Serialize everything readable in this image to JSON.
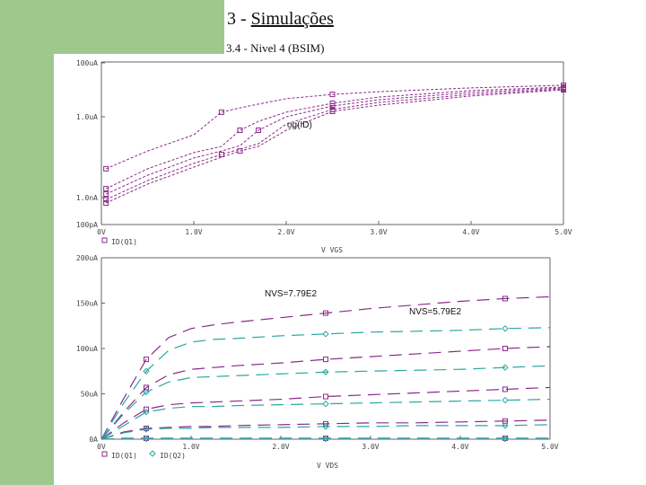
{
  "header": {
    "number": "3 -",
    "title": "Simulações",
    "subtitle": "3.4 - Nivel 4  (BSIM)"
  },
  "colors": {
    "q1": "#8b2a8b",
    "q2": "#2aa8a0",
    "axis": "#666666",
    "band": "#9dc98f"
  },
  "chart_data": [
    {
      "type": "line",
      "title": "",
      "xlabel": "V VGS",
      "ylabel": "",
      "yscale": "log",
      "legend": [
        "ID(Q1)"
      ],
      "annotation": "og(ID)",
      "xlim": [
        0,
        5
      ],
      "ylim_log10": [
        -10,
        -4
      ],
      "xticks": [
        "0V",
        "1.0V",
        "2.0V",
        "3.0V",
        "4.0V",
        "5.0V"
      ],
      "yticks": [
        {
          "label": "100uA",
          "log10": -4
        },
        {
          "label": "1.0uA",
          "log10": -6
        },
        {
          "label": "1.0nA",
          "log10": -9
        },
        {
          "label": "100pA",
          "log10": -10
        }
      ],
      "x": [
        0.05,
        0.5,
        1.0,
        1.3,
        1.5,
        1.7,
        2,
        2.5,
        3,
        4,
        5
      ],
      "series": [
        {
          "name": "ID(Q1)",
          "log10_values": [
            -7.93,
            -7.27,
            -6.67,
            -5.83,
            -5.67,
            -5.53,
            -5.33,
            -5.17,
            -5.07,
            -4.93,
            -4.83
          ]
        },
        {
          "name": "ID(Q1)",
          "log10_values": [
            -8.67,
            -7.93,
            -7.33,
            -7.1,
            -6.5,
            -6.17,
            -5.83,
            -5.5,
            -5.27,
            -5.03,
            -4.9
          ]
        },
        {
          "name": "ID(Q1)",
          "log10_values": [
            -8.87,
            -8.17,
            -7.53,
            -7.27,
            -7.07,
            -6.5,
            -6.0,
            -5.6,
            -5.37,
            -5.1,
            -4.93
          ]
        },
        {
          "name": "ID(Q1)",
          "log10_values": [
            -9.07,
            -8.37,
            -7.73,
            -7.4,
            -7.2,
            -7.0,
            -6.27,
            -5.73,
            -5.47,
            -5.17,
            -4.97
          ]
        },
        {
          "name": "ID(Q1)",
          "log10_values": [
            -9.2,
            -8.5,
            -7.87,
            -7.5,
            -7.27,
            -7.1,
            -6.5,
            -5.8,
            -5.57,
            -5.23,
            -5.0
          ]
        }
      ]
    },
    {
      "type": "line",
      "title": "",
      "xlabel": "V VDS",
      "ylabel": "",
      "legend": [
        "ID(Q1)",
        "ID(Q2)"
      ],
      "annotations": [
        "NVS=7.79E2",
        "NVS=5.79E2"
      ],
      "xlim": [
        0,
        5
      ],
      "ylim": [
        0,
        200
      ],
      "xticks": [
        "0V",
        "1.0V",
        "2.0V",
        "3.0V",
        "4.0V",
        "5.0V"
      ],
      "yticks": [
        {
          "label": "200uA",
          "v": 200
        },
        {
          "label": "150uA",
          "v": 150
        },
        {
          "label": "100uA",
          "v": 100
        },
        {
          "label": "50uA",
          "v": 50
        },
        {
          "label": "0A",
          "v": 0
        }
      ],
      "x": [
        0,
        0.25,
        0.5,
        0.75,
        1,
        1.25,
        1.5,
        2,
        2.5,
        3,
        3.5,
        4,
        4.5,
        5
      ],
      "series": [
        {
          "name": "ID(Q1)",
          "values": [
            0,
            45,
            88,
            112,
            122,
            126,
            129,
            134,
            139,
            144,
            148,
            152,
            155,
            157
          ]
        },
        {
          "name": "ID(Q2)",
          "values": [
            0,
            40,
            75,
            98,
            107,
            110,
            111,
            114,
            116,
            118,
            119,
            120,
            122,
            123
          ]
        },
        {
          "name": "ID(Q1)",
          "values": [
            0,
            30,
            57,
            71,
            77,
            79,
            81,
            84,
            88,
            91,
            94,
            97,
            100,
            102
          ]
        },
        {
          "name": "ID(Q2)",
          "values": [
            0,
            28,
            52,
            63,
            68,
            69,
            70,
            72,
            74,
            75,
            76,
            77,
            79,
            81
          ]
        },
        {
          "name": "ID(Q1)",
          "values": [
            0,
            18,
            33,
            38,
            40,
            41,
            42,
            44,
            47,
            49,
            51,
            53,
            55,
            57
          ]
        },
        {
          "name": "ID(Q2)",
          "values": [
            0,
            15,
            30,
            34,
            36,
            36,
            37,
            38,
            39,
            40,
            41,
            42,
            43,
            44
          ]
        },
        {
          "name": "ID(Q1)",
          "values": [
            0,
            8,
            12,
            13,
            14,
            14,
            15,
            16,
            17,
            18,
            18,
            19,
            20,
            21
          ]
        },
        {
          "name": "ID(Q2)",
          "values": [
            0,
            7,
            11,
            12,
            12,
            13,
            13,
            13,
            14,
            14,
            15,
            15,
            15,
            16
          ]
        },
        {
          "name": "ID(Q1)",
          "values": [
            0,
            1,
            1,
            1,
            1,
            1,
            1,
            1,
            1,
            1,
            1,
            1,
            1,
            1
          ]
        },
        {
          "name": "ID(Q2)",
          "values": [
            0,
            0.5,
            0.5,
            0.5,
            0.5,
            0.5,
            0.5,
            0.5,
            0.5,
            0.5,
            0.5,
            0.5,
            0.5,
            0.5
          ]
        }
      ]
    }
  ]
}
